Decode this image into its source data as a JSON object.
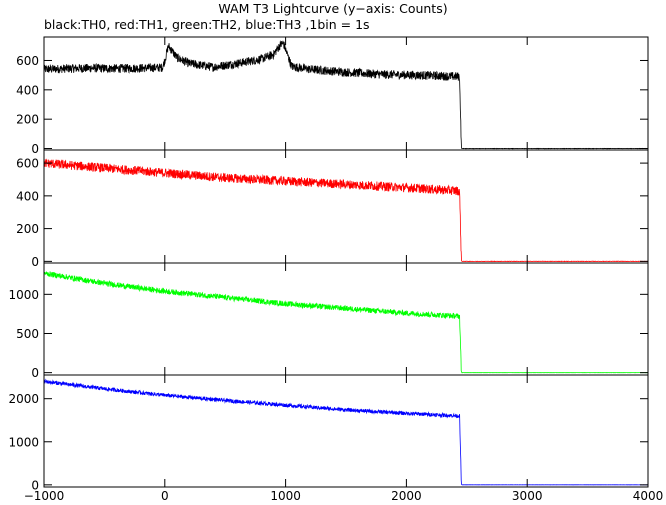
{
  "chart_data": {
    "type": "line",
    "title": "WAM T3 Lightcurve (y−axis: Counts)",
    "subtitle": "black:TH0, red:TH1, green:TH2, blue:TH3 ,1bin = 1s",
    "xlabel": "",
    "ylabel": "",
    "xlim": [
      -1000,
      4000
    ],
    "x_ticks": [
      -1000,
      0,
      1000,
      2000,
      3000,
      4000
    ],
    "x_tick_labels": [
      "−1000",
      "0",
      "1000",
      "2000",
      "3000",
      "4000"
    ],
    "grid": false,
    "panels": [
      {
        "series_name": "TH0",
        "color": "#000000",
        "ylim": [
          -10,
          760
        ],
        "y_ticks": [
          0,
          200,
          400,
          600
        ],
        "x": [
          -1000,
          -800,
          -600,
          -400,
          -200,
          -20,
          0,
          30,
          100,
          200,
          400,
          600,
          800,
          900,
          950,
          980,
          1050,
          1200,
          1500,
          1800,
          2100,
          2440,
          2455,
          2460,
          4000
        ],
        "values": [
          540,
          545,
          548,
          545,
          548,
          552,
          600,
          700,
          620,
          580,
          555,
          580,
          610,
          640,
          700,
          720,
          560,
          540,
          520,
          505,
          500,
          490,
          5,
          0,
          0
        ],
        "noise": 30
      },
      {
        "series_name": "TH1",
        "color": "#ff0000",
        "ylim": [
          -10,
          680
        ],
        "y_ticks": [
          0,
          200,
          400,
          600
        ],
        "x": [
          -1000,
          -500,
          0,
          500,
          1000,
          1500,
          2000,
          2440,
          2455,
          2460,
          4000
        ],
        "values": [
          600,
          570,
          540,
          510,
          490,
          470,
          450,
          430,
          5,
          0,
          0
        ],
        "noise": 28
      },
      {
        "series_name": "TH2",
        "color": "#00ff00",
        "ylim": [
          -30,
          1400
        ],
        "y_ticks": [
          0,
          500,
          1000
        ],
        "x": [
          -1000,
          -500,
          0,
          500,
          1000,
          1500,
          2000,
          2440,
          2455,
          2460,
          4000
        ],
        "values": [
          1270,
          1140,
          1040,
          960,
          880,
          820,
          760,
          720,
          10,
          0,
          0
        ],
        "noise": 35
      },
      {
        "series_name": "TH3",
        "color": "#0000ff",
        "ylim": [
          -50,
          2550
        ],
        "y_ticks": [
          0,
          1000,
          2000
        ],
        "x": [
          -1000,
          -500,
          0,
          500,
          1000,
          1500,
          2000,
          2440,
          2455,
          2460,
          4000
        ],
        "values": [
          2400,
          2230,
          2080,
          1960,
          1850,
          1740,
          1660,
          1600,
          20,
          0,
          0
        ],
        "noise": 45
      }
    ]
  }
}
